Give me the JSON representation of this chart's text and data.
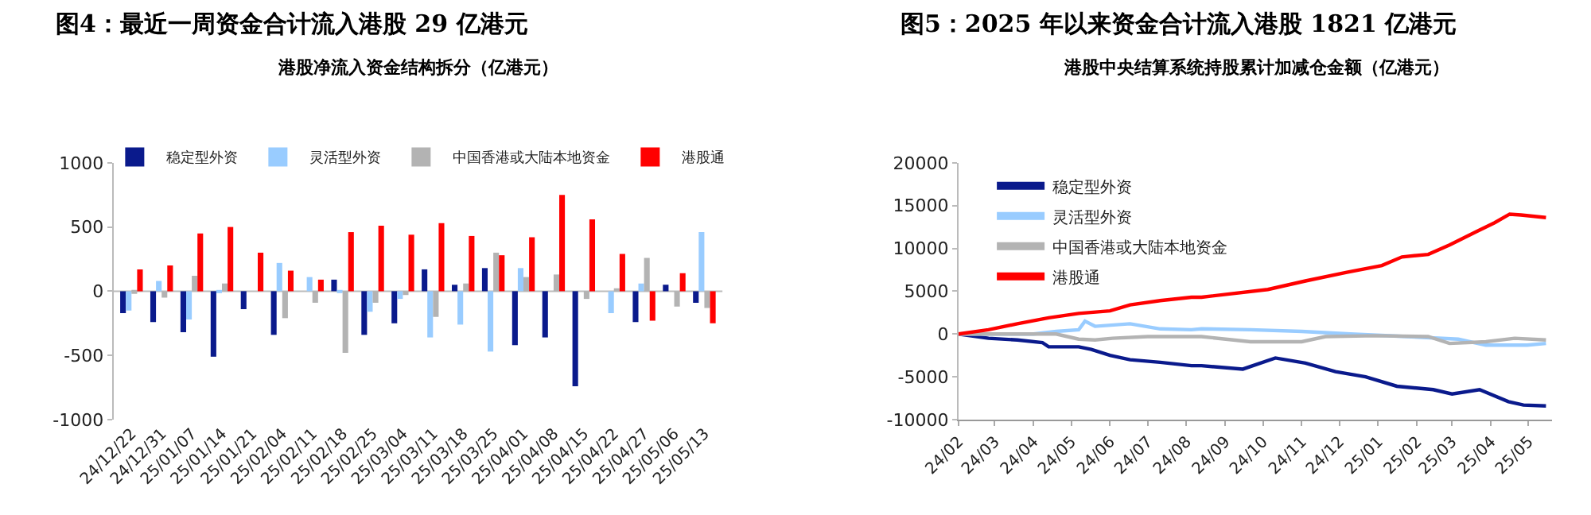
{
  "chart_data": [
    {
      "type": "bar",
      "title": "图4：最近一周资金合计流入港股 29 亿港元",
      "subtitle": "港股净流入资金结构拆分（亿港元）",
      "categories": [
        "24/12/22",
        "24/12/31",
        "25/01/07",
        "25/01/14",
        "25/01/21",
        "25/02/04",
        "25/02/11",
        "25/02/18",
        "25/02/25",
        "25/03/04",
        "25/03/11",
        "25/03/18",
        "25/03/25",
        "25/04/01",
        "25/04/08",
        "25/04/15",
        "25/04/22",
        "25/04/27",
        "25/05/06",
        "25/05/13"
      ],
      "series": [
        {
          "name": "稳定型外资",
          "color": "#0a1a8c",
          "values": [
            -170,
            -240,
            -320,
            -510,
            -140,
            -340,
            null,
            90,
            -340,
            -250,
            170,
            50,
            180,
            -420,
            -360,
            -740,
            null,
            -240,
            50,
            -90
          ]
        },
        {
          "name": "灵活型外资",
          "color": "#99ccff",
          "values": [
            -150,
            80,
            -220,
            -10,
            null,
            220,
            110,
            -10,
            -160,
            -60,
            -360,
            -260,
            -470,
            180,
            null,
            null,
            -170,
            60,
            null,
            460
          ]
        },
        {
          "name": "中国香港或大陆本地资金",
          "color": "#b3b3b3",
          "values": [
            -20,
            -50,
            120,
            60,
            null,
            -210,
            -90,
            -480,
            -90,
            -30,
            -200,
            60,
            300,
            110,
            130,
            -60,
            20,
            260,
            -120,
            -130
          ]
        },
        {
          "name": "港股通",
          "color": "#ff0000",
          "values": [
            170,
            200,
            450,
            500,
            300,
            160,
            90,
            460,
            510,
            440,
            530,
            430,
            280,
            420,
            750,
            560,
            290,
            -230,
            140,
            -250
          ]
        }
      ],
      "ylim": [
        -1000,
        1000
      ],
      "yticks": [
        -1000,
        -500,
        0,
        500,
        1000
      ],
      "legend": "top"
    },
    {
      "type": "line",
      "title": "图5：2025 年以来资金合计流入港股 1821 亿港元",
      "subtitle": "港股中央结算系统持股累计加减仓金额（亿港元）",
      "series": [
        {
          "name": "稳定型外资",
          "color": "#0a1a8c",
          "x": [
            "2024-02-01",
            "2024-02-25",
            "2024-03-19",
            "2024-04-08",
            "2024-04-13",
            "2024-05-07",
            "2024-05-17",
            "2024-06-01",
            "2024-06-17",
            "2024-07-11",
            "2024-08-05",
            "2024-08-13",
            "2024-09-15",
            "2024-10-11",
            "2024-11-04",
            "2024-11-28",
            "2024-12-22",
            "2025-01-16",
            "2025-02-14",
            "2025-03-01",
            "2025-03-23",
            "2025-04-15",
            "2025-04-27",
            "2025-05-15"
          ],
          "values": [
            0,
            -500,
            -700,
            -1000,
            -1500,
            -1500,
            -1800,
            -2500,
            -3000,
            -3300,
            -3700,
            -3700,
            -4100,
            -2800,
            -3400,
            -4400,
            -5000,
            -6100,
            -6500,
            -7000,
            -6500,
            -7900,
            -8300,
            -8400
          ]
        },
        {
          "name": "灵活型外资",
          "color": "#99ccff",
          "x": [
            "2024-02-01",
            "2024-04-01",
            "2024-04-19",
            "2024-05-07",
            "2024-05-12",
            "2024-05-20",
            "2024-06-17",
            "2024-07-11",
            "2024-08-05",
            "2024-08-13",
            "2024-09-21",
            "2024-11-01",
            "2024-12-10",
            "2025-01-24",
            "2025-03-06",
            "2025-03-28",
            "2025-04-30",
            "2025-05-15"
          ],
          "values": [
            0,
            0,
            300,
            500,
            1500,
            900,
            1200,
            600,
            500,
            600,
            500,
            300,
            0,
            -300,
            -600,
            -1300,
            -1300,
            -1100
          ]
        },
        {
          "name": "中国香港或大陆本地资金",
          "color": "#b3b3b3",
          "x": [
            "2024-02-01",
            "2024-04-19",
            "2024-05-07",
            "2024-05-20",
            "2024-06-03",
            "2024-07-01",
            "2024-08-13",
            "2024-09-21",
            "2024-11-01",
            "2024-11-20",
            "2024-12-30",
            "2025-02-10",
            "2025-02-27",
            "2025-03-28",
            "2025-04-20",
            "2025-05-15"
          ],
          "values": [
            0,
            0,
            -600,
            -700,
            -500,
            -300,
            -300,
            -900,
            -900,
            -300,
            -200,
            -300,
            -1100,
            -900,
            -500,
            -700
          ]
        },
        {
          "name": "港股通",
          "color": "#ff0000",
          "x": [
            "2024-02-01",
            "2024-02-25",
            "2024-03-19",
            "2024-04-13",
            "2024-05-07",
            "2024-06-01",
            "2024-06-17",
            "2024-07-11",
            "2024-08-05",
            "2024-08-13",
            "2024-10-05",
            "2024-11-04",
            "2024-12-07",
            "2025-01-04",
            "2025-01-20",
            "2025-02-10",
            "2025-02-27",
            "2025-03-21",
            "2025-04-04",
            "2025-04-16",
            "2025-04-25",
            "2025-05-15"
          ],
          "values": [
            0,
            500,
            1200,
            1900,
            2400,
            2700,
            3400,
            3900,
            4300,
            4300,
            5200,
            6200,
            7200,
            8000,
            9000,
            9300,
            10400,
            12000,
            13000,
            14000,
            13900,
            13600
          ]
        }
      ],
      "xlim": [
        "2024-02-01",
        "2025-05-20"
      ],
      "xticks": [
        {
          "value": "2024-02",
          "label": "24/02"
        },
        {
          "value": "2024-03",
          "label": "24/03"
        },
        {
          "value": "2024-04",
          "label": "24/04"
        },
        {
          "value": "2024-05",
          "label": "24/05"
        },
        {
          "value": "2024-06",
          "label": "24/06"
        },
        {
          "value": "2024-07",
          "label": "24/07"
        },
        {
          "value": "2024-08",
          "label": "24/08"
        },
        {
          "value": "2024-09",
          "label": "24/09"
        },
        {
          "value": "2024-10",
          "label": "24/10"
        },
        {
          "value": "2024-11",
          "label": "24/11"
        },
        {
          "value": "2024-12",
          "label": "24/12"
        },
        {
          "value": "2025-01",
          "label": "25/01"
        },
        {
          "value": "2025-02",
          "label": "25/02"
        },
        {
          "value": "2025-03",
          "label": "25/03"
        },
        {
          "value": "2025-04",
          "label": "25/04"
        },
        {
          "value": "2025-05",
          "label": "25/05"
        }
      ],
      "ylim": [
        -10000,
        20000
      ],
      "yticks": [
        -10000,
        -5000,
        0,
        5000,
        10000,
        15000,
        20000
      ],
      "legend": "top left",
      "marker": "none",
      "line_style": "solid"
    }
  ]
}
